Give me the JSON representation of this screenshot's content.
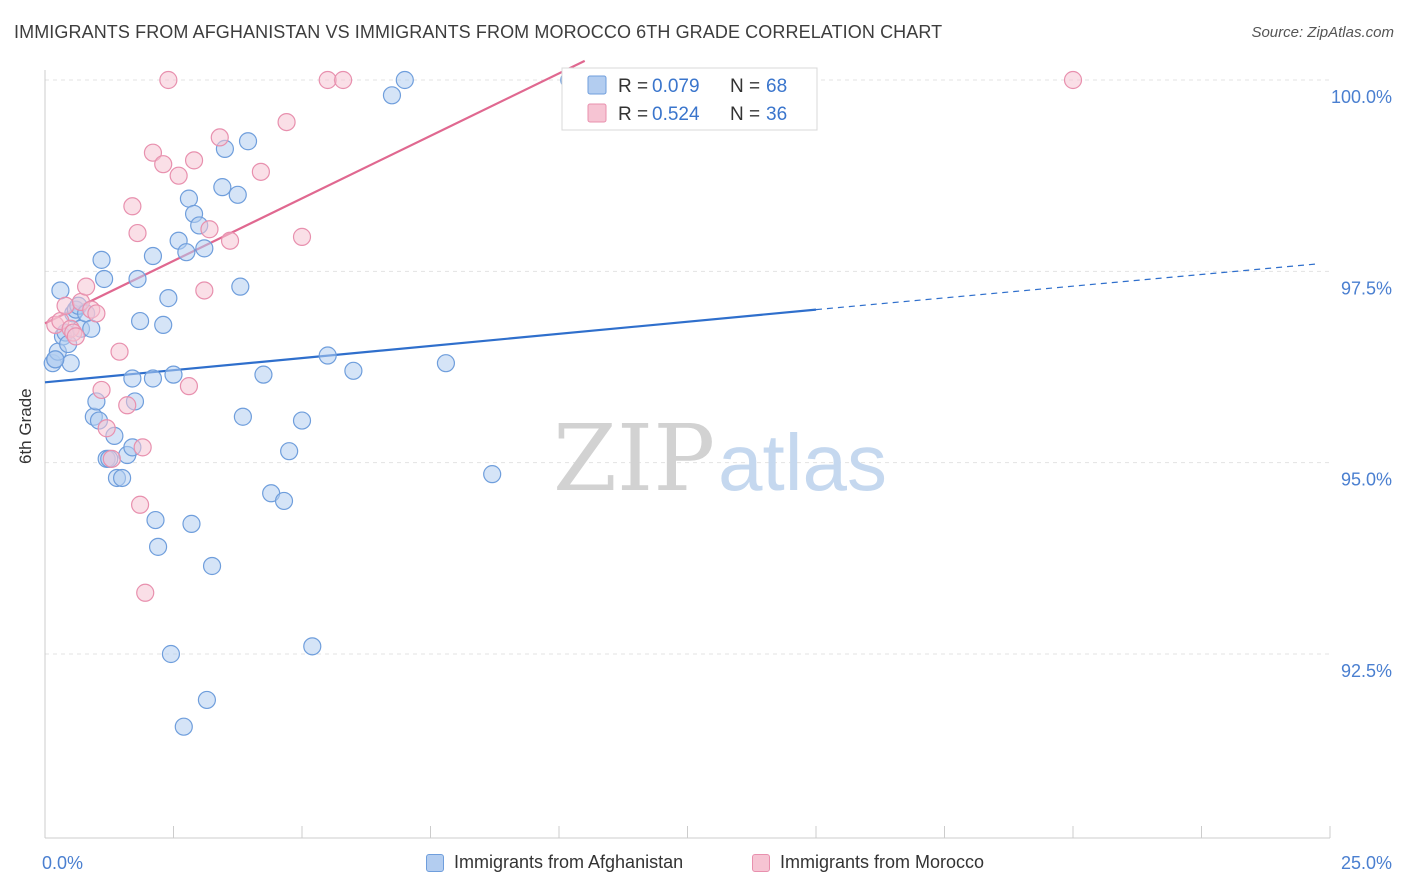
{
  "title": "IMMIGRANTS FROM AFGHANISTAN VS IMMIGRANTS FROM MOROCCO 6TH GRADE CORRELATION CHART",
  "source": "Source: ZipAtlas.com",
  "watermark": {
    "zip": "ZIP",
    "atlas": "atlas"
  },
  "colors": {
    "blue_fill": "#b3cdf0",
    "blue_stroke": "#6f9edc",
    "blue_line": "#2f6fcc",
    "pink_fill": "#f6c4d3",
    "pink_stroke": "#e890ae",
    "pink_line": "#e06890",
    "tick_text": "#4a7fd0",
    "grid": "#e3e3e3"
  },
  "legend_stats": [
    {
      "r_label": "R = ",
      "r_value": "0.079",
      "n_label": "N = ",
      "n_value": "68",
      "color": "blue"
    },
    {
      "r_label": "R = ",
      "r_value": "0.524",
      "n_label": "N = ",
      "n_value": "36",
      "color": "pink"
    }
  ],
  "legend_bottom": [
    {
      "label": "Immigrants from Afghanistan",
      "color": "blue"
    },
    {
      "label": "Immigrants from Morocco",
      "color": "pink"
    }
  ],
  "chart_data": {
    "type": "scatter",
    "title": "IMMIGRANTS FROM AFGHANISTAN VS IMMIGRANTS FROM MOROCCO 6TH GRADE CORRELATION CHART",
    "xlabel": "",
    "ylabel": "6th Grade",
    "xlim": [
      0,
      25
    ],
    "ylim": [
      90.5,
      100.3
    ],
    "x_tick_labels": [
      {
        "value": 0,
        "label": "0.0%"
      },
      {
        "value": 25,
        "label": "25.0%"
      }
    ],
    "y_tick_labels": [
      {
        "value": 100,
        "label": "100.0%"
      },
      {
        "value": 97.5,
        "label": "97.5%"
      },
      {
        "value": 95,
        "label": "95.0%"
      },
      {
        "value": 92.5,
        "label": "92.5%"
      }
    ],
    "series": [
      {
        "name": "Immigrants from Afghanistan",
        "color": "blue",
        "points": [
          [
            0.15,
            96.3
          ],
          [
            0.2,
            96.35
          ],
          [
            0.25,
            96.45
          ],
          [
            0.3,
            97.25
          ],
          [
            0.35,
            96.65
          ],
          [
            0.4,
            96.7
          ],
          [
            0.45,
            96.55
          ],
          [
            0.5,
            96.3
          ],
          [
            0.55,
            96.95
          ],
          [
            0.6,
            97.0
          ],
          [
            0.65,
            97.05
          ],
          [
            0.7,
            96.75
          ],
          [
            0.8,
            96.95
          ],
          [
            0.9,
            96.75
          ],
          [
            0.95,
            95.6
          ],
          [
            1.0,
            95.8
          ],
          [
            1.05,
            95.55
          ],
          [
            1.1,
            97.65
          ],
          [
            1.15,
            97.4
          ],
          [
            1.2,
            95.05
          ],
          [
            1.25,
            95.05
          ],
          [
            1.35,
            95.35
          ],
          [
            1.4,
            94.8
          ],
          [
            1.5,
            94.8
          ],
          [
            1.6,
            95.1
          ],
          [
            1.7,
            96.1
          ],
          [
            1.7,
            95.2
          ],
          [
            1.75,
            95.8
          ],
          [
            1.8,
            97.4
          ],
          [
            1.85,
            96.85
          ],
          [
            2.1,
            96.1
          ],
          [
            2.1,
            97.7
          ],
          [
            2.15,
            94.25
          ],
          [
            2.2,
            93.9
          ],
          [
            2.3,
            96.8
          ],
          [
            2.4,
            97.15
          ],
          [
            2.45,
            92.5
          ],
          [
            2.5,
            96.15
          ],
          [
            2.6,
            97.9
          ],
          [
            2.7,
            91.55
          ],
          [
            2.75,
            97.75
          ],
          [
            2.8,
            98.45
          ],
          [
            2.85,
            94.2
          ],
          [
            2.9,
            98.25
          ],
          [
            3.0,
            98.1
          ],
          [
            3.1,
            97.8
          ],
          [
            3.15,
            91.9
          ],
          [
            3.25,
            93.65
          ],
          [
            3.45,
            98.6
          ],
          [
            3.5,
            99.1
          ],
          [
            3.75,
            98.5
          ],
          [
            3.8,
            97.3
          ],
          [
            3.85,
            95.6
          ],
          [
            3.95,
            99.2
          ],
          [
            4.25,
            96.15
          ],
          [
            4.4,
            94.6
          ],
          [
            4.65,
            94.5
          ],
          [
            4.75,
            95.15
          ],
          [
            5.0,
            95.55
          ],
          [
            5.2,
            92.6
          ],
          [
            5.5,
            96.4
          ],
          [
            6.0,
            96.2
          ],
          [
            6.75,
            99.8
          ],
          [
            7.0,
            100.0
          ],
          [
            7.8,
            96.3
          ],
          [
            8.7,
            94.85
          ],
          [
            10.2,
            100.0
          ],
          [
            0.2,
            96.35
          ]
        ]
      },
      {
        "name": "Immigrants from Morocco",
        "color": "pink",
        "points": [
          [
            0.2,
            96.8
          ],
          [
            0.3,
            96.85
          ],
          [
            0.4,
            97.05
          ],
          [
            0.5,
            96.75
          ],
          [
            0.55,
            96.7
          ],
          [
            0.6,
            96.65
          ],
          [
            0.7,
            97.1
          ],
          [
            0.8,
            97.3
          ],
          [
            0.9,
            97.0
          ],
          [
            1.0,
            96.95
          ],
          [
            1.1,
            95.95
          ],
          [
            1.2,
            95.45
          ],
          [
            1.3,
            95.05
          ],
          [
            1.45,
            96.45
          ],
          [
            1.6,
            95.75
          ],
          [
            1.7,
            98.35
          ],
          [
            1.8,
            98.0
          ],
          [
            1.85,
            94.45
          ],
          [
            1.9,
            95.2
          ],
          [
            1.95,
            93.3
          ],
          [
            2.1,
            99.05
          ],
          [
            2.3,
            98.9
          ],
          [
            2.4,
            100.0
          ],
          [
            2.6,
            98.75
          ],
          [
            2.8,
            96.0
          ],
          [
            2.9,
            98.95
          ],
          [
            3.1,
            97.25
          ],
          [
            3.2,
            98.05
          ],
          [
            3.4,
            99.25
          ],
          [
            3.6,
            97.9
          ],
          [
            4.2,
            98.8
          ],
          [
            4.7,
            99.45
          ],
          [
            5.0,
            97.95
          ],
          [
            5.5,
            100.0
          ],
          [
            5.8,
            100.0
          ],
          [
            20.0,
            100.0
          ]
        ]
      }
    ],
    "trend_lines": [
      {
        "series": "Immigrants from Afghanistan",
        "x": [
          0,
          15.0
        ],
        "y": [
          96.05,
          97.0
        ],
        "dashed_to_x": 24.8,
        "dashed_to_y": 97.6
      },
      {
        "series": "Immigrants from Morocco",
        "x": [
          0,
          10.5
        ],
        "y": [
          96.82,
          100.25
        ]
      }
    ],
    "grid": true,
    "legend_position": "top-center"
  }
}
